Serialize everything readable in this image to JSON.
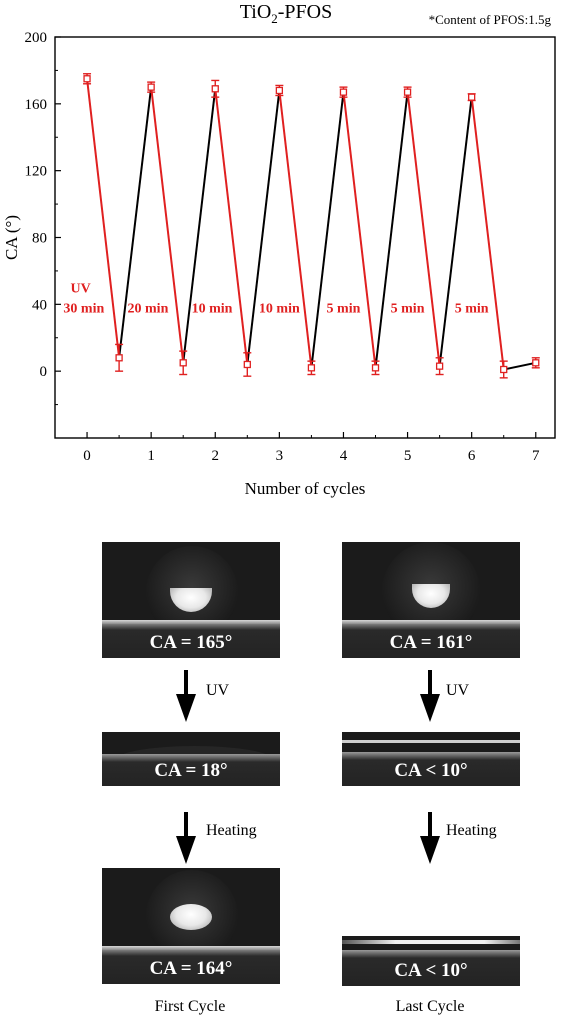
{
  "chart_data": {
    "type": "line",
    "title": "TiO2-PFOS",
    "title_base": "TiO",
    "title_sub": "2",
    "title_rest": "-PFOS",
    "note": "*Content of PFOS:1.5g",
    "xlabel": "Number of cycles",
    "ylabel": "CA (°)",
    "xlim": [
      -0.5,
      7.3
    ],
    "ylim": [
      -40,
      200
    ],
    "xticks": [
      0,
      1,
      2,
      3,
      4,
      5,
      6,
      7
    ],
    "yticks": [
      0,
      40,
      80,
      120,
      160,
      200
    ],
    "grid": false,
    "points": [
      {
        "x": 0,
        "y": 175,
        "err": 3
      },
      {
        "x": 0.5,
        "y": 8,
        "err": 8
      },
      {
        "x": 1,
        "y": 170,
        "err": 3
      },
      {
        "x": 1.5,
        "y": 5,
        "err": 7
      },
      {
        "x": 2,
        "y": 169,
        "err": 5
      },
      {
        "x": 2.5,
        "y": 4,
        "err": 7
      },
      {
        "x": 3,
        "y": 168,
        "err": 3
      },
      {
        "x": 3.5,
        "y": 2,
        "err": 4
      },
      {
        "x": 4,
        "y": 167,
        "err": 3
      },
      {
        "x": 4.5,
        "y": 2,
        "err": 4
      },
      {
        "x": 5,
        "y": 167,
        "err": 3
      },
      {
        "x": 5.5,
        "y": 3,
        "err": 5
      },
      {
        "x": 6,
        "y": 164,
        "err": 2
      },
      {
        "x": 6.5,
        "y": 1,
        "err": 5
      },
      {
        "x": 7,
        "y": 5,
        "err": 3
      }
    ],
    "uv_color": "#e02020",
    "heat_color": "#000000",
    "annotations": [
      {
        "text": "UV",
        "x": -0.1,
        "y": 47
      },
      {
        "text": "30 min",
        "x": -0.05,
        "y": 35
      },
      {
        "text": "20 min",
        "x": 0.95,
        "y": 35
      },
      {
        "text": "10 min",
        "x": 1.95,
        "y": 35
      },
      {
        "text": "10 min",
        "x": 3.0,
        "y": 35
      },
      {
        "text": "5 min",
        "x": 4.0,
        "y": 35
      },
      {
        "text": "5 min",
        "x": 5.0,
        "y": 35
      },
      {
        "text": "5 min",
        "x": 6.0,
        "y": 35
      }
    ]
  },
  "images": {
    "first": {
      "caption": "First Cycle",
      "top_label": "CA = 165°",
      "middle_label": "CA = 18°",
      "bottom_label": "CA = 164°"
    },
    "last": {
      "caption": "Last Cycle",
      "top_label": "CA = 161°",
      "middle_label": "CA < 10°",
      "bottom_label": "CA < 10°"
    },
    "step1": "UV",
    "step2": "Heating"
  }
}
